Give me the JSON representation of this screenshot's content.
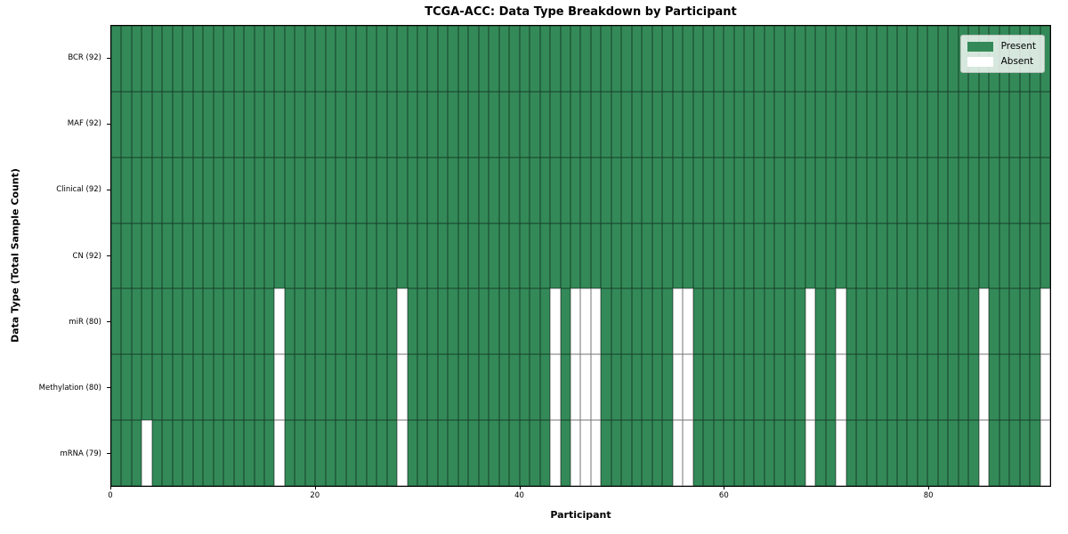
{
  "figure": {
    "title": "TCGA-ACC: Data Type Breakdown by Participant",
    "xlabel": "Participant",
    "ylabel": "Data Type (Total Sample Count)"
  },
  "legend": {
    "items": [
      {
        "name": "present",
        "label": "Present",
        "color": "#338a58"
      },
      {
        "name": "absent",
        "label": "Absent",
        "color": "#ffffff"
      }
    ]
  },
  "chart_data": {
    "type": "heatmap",
    "title": "TCGA-ACC: Data Type Breakdown by Participant",
    "xlabel": "Participant",
    "ylabel": "Data Type (Total Sample Count)",
    "legend_position": "upper right",
    "n_participants": 92,
    "x_range": [
      0,
      92
    ],
    "x_ticks": [
      0,
      20,
      40,
      60,
      80
    ],
    "colors": {
      "present": "#338a58",
      "absent": "#ffffff",
      "cell_edge": "rgba(0,0,0,0.55)"
    },
    "rows": [
      {
        "label": "BCR (92)",
        "total": 92,
        "absent_participants": []
      },
      {
        "label": "MAF (92)",
        "total": 92,
        "absent_participants": []
      },
      {
        "label": "Clinical (92)",
        "total": 92,
        "absent_participants": []
      },
      {
        "label": "CN (92)",
        "total": 92,
        "absent_participants": []
      },
      {
        "label": "miR (80)",
        "total": 80,
        "absent_participants": [
          16,
          28,
          43,
          45,
          46,
          47,
          55,
          56,
          68,
          71,
          85,
          91
        ]
      },
      {
        "label": "Methylation (80)",
        "total": 80,
        "absent_participants": [
          16,
          28,
          43,
          45,
          46,
          47,
          55,
          56,
          68,
          71,
          85,
          91
        ]
      },
      {
        "label": "mRNA (79)",
        "total": 79,
        "absent_participants": [
          3,
          16,
          28,
          43,
          45,
          46,
          47,
          55,
          56,
          68,
          71,
          85,
          91
        ]
      }
    ]
  }
}
